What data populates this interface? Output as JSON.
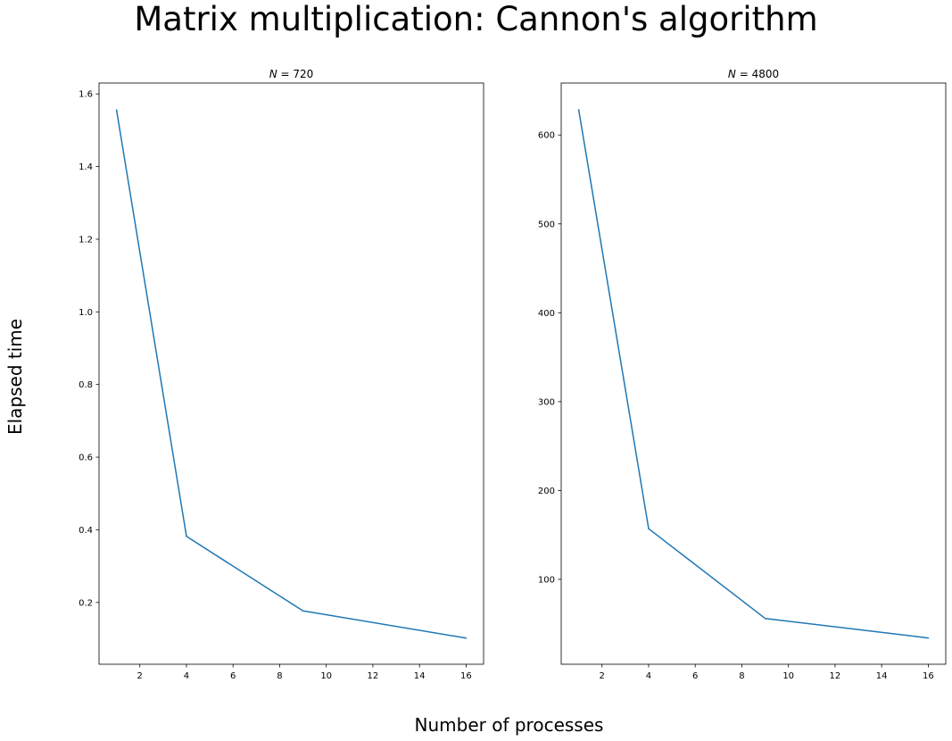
{
  "figure": {
    "suptitle": "Matrix multiplication: Cannon's algorithm",
    "xlabel": "Number of processes",
    "ylabel": "Elapsed time"
  },
  "chart_data": [
    {
      "type": "line",
      "title_var": "N",
      "title_value": "720",
      "x": [
        1,
        4,
        9,
        16
      ],
      "y": [
        1.556,
        0.382,
        0.177,
        0.102
      ],
      "xlim": [
        0.25,
        16.75
      ],
      "ylim": [
        0.03,
        1.63
      ],
      "xticks": [
        2,
        4,
        6,
        8,
        10,
        12,
        14,
        16
      ],
      "yticks": [
        0.2,
        0.4,
        0.6,
        0.8,
        1.0,
        1.2,
        1.4,
        1.6
      ],
      "ytick_labels": [
        "0.2",
        "0.4",
        "0.6",
        "0.8",
        "1.0",
        "1.2",
        "1.4",
        "1.6"
      ],
      "color": "#1f77b4",
      "grid": false
    },
    {
      "type": "line",
      "title_var": "N",
      "title_value": "4800",
      "x": [
        1,
        4,
        9,
        16
      ],
      "y": [
        628.5,
        157,
        56,
        34
      ],
      "xlim": [
        0.25,
        16.75
      ],
      "ylim": [
        4.5,
        658.5
      ],
      "xticks": [
        2,
        4,
        6,
        8,
        10,
        12,
        14,
        16
      ],
      "yticks": [
        100,
        200,
        300,
        400,
        500,
        600
      ],
      "ytick_labels": [
        "100",
        "200",
        "300",
        "400",
        "500",
        "600"
      ],
      "color": "#1f77b4",
      "grid": false
    }
  ]
}
